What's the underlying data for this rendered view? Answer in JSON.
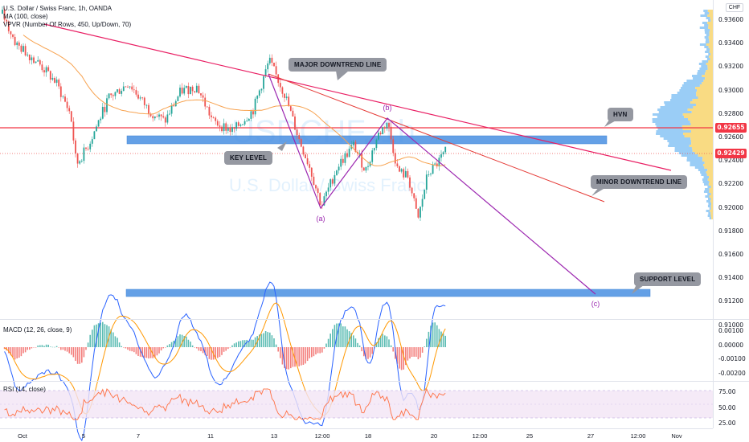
{
  "legend": {
    "symbol_line": "U.S. Dollar / Swiss Franc, 1h, OANDA",
    "ma_line": "MA (100, close)",
    "vpvr_line": "VPVR (Number Of Rows, 450, Up/Down, 70)",
    "macd_line": "MACD (12, 26, close, 9)",
    "rsi_line": "RSI (14, close)"
  },
  "watermark": {
    "symbol": "USDCHF, 1h",
    "name": "U.S. Dollar / Swiss Franc"
  },
  "currency_label": "CHF",
  "price_axis": {
    "ticks": [
      "0.93600",
      "0.93400",
      "0.93200",
      "0.93000",
      "0.92800",
      "0.92600",
      "0.92400",
      "0.92200",
      "0.92000",
      "0.91800",
      "0.91600",
      "0.91400",
      "0.91200",
      "0.91000"
    ],
    "line_tag": "0.92655",
    "last_price_tag": "0.92429",
    "line_tag_color": "#f23645",
    "last_price_tag_color": "#26a69a"
  },
  "macd_axis": {
    "ticks": [
      "0.00100",
      "0.00000",
      "-0.00100",
      "-0.00200"
    ]
  },
  "rsi_axis": {
    "ticks": [
      "75.00",
      "50.00",
      "25.00"
    ]
  },
  "time_axis": {
    "ticks": [
      "Oct",
      "5",
      "7",
      "11",
      "13",
      "12:00",
      "18",
      "20",
      "12:00",
      "25",
      "27",
      "12:00",
      "Nov"
    ]
  },
  "annotations": {
    "major_downtrend": "MAJOR DOWNTREND LINE",
    "minor_downtrend": "MINOR DOWNTREND LINE",
    "key_level": "KEY LEVEL",
    "support_level": "SUPPORT LEVEL",
    "hvn": "HVN",
    "wave_a": "(a)",
    "wave_b": "(b)",
    "wave_c": "(c)"
  },
  "colors": {
    "up_candle": "#26a69a",
    "down_candle": "#ef5350",
    "ma_line": "#f7a24f",
    "trend_line": "#e91e63",
    "minor_trend_line": "#e53935",
    "wave_line": "#9c27b0",
    "zone_fill": "#4a90e2",
    "horizontal_line": "#f23645",
    "rsi_line": "#ff7043",
    "rsi_band": "#f3e5f5",
    "macd_line": "#2962ff",
    "signal_line": "#ff9800",
    "vp_up": "#8fc8f5",
    "vp_down": "#f8d775"
  }
}
